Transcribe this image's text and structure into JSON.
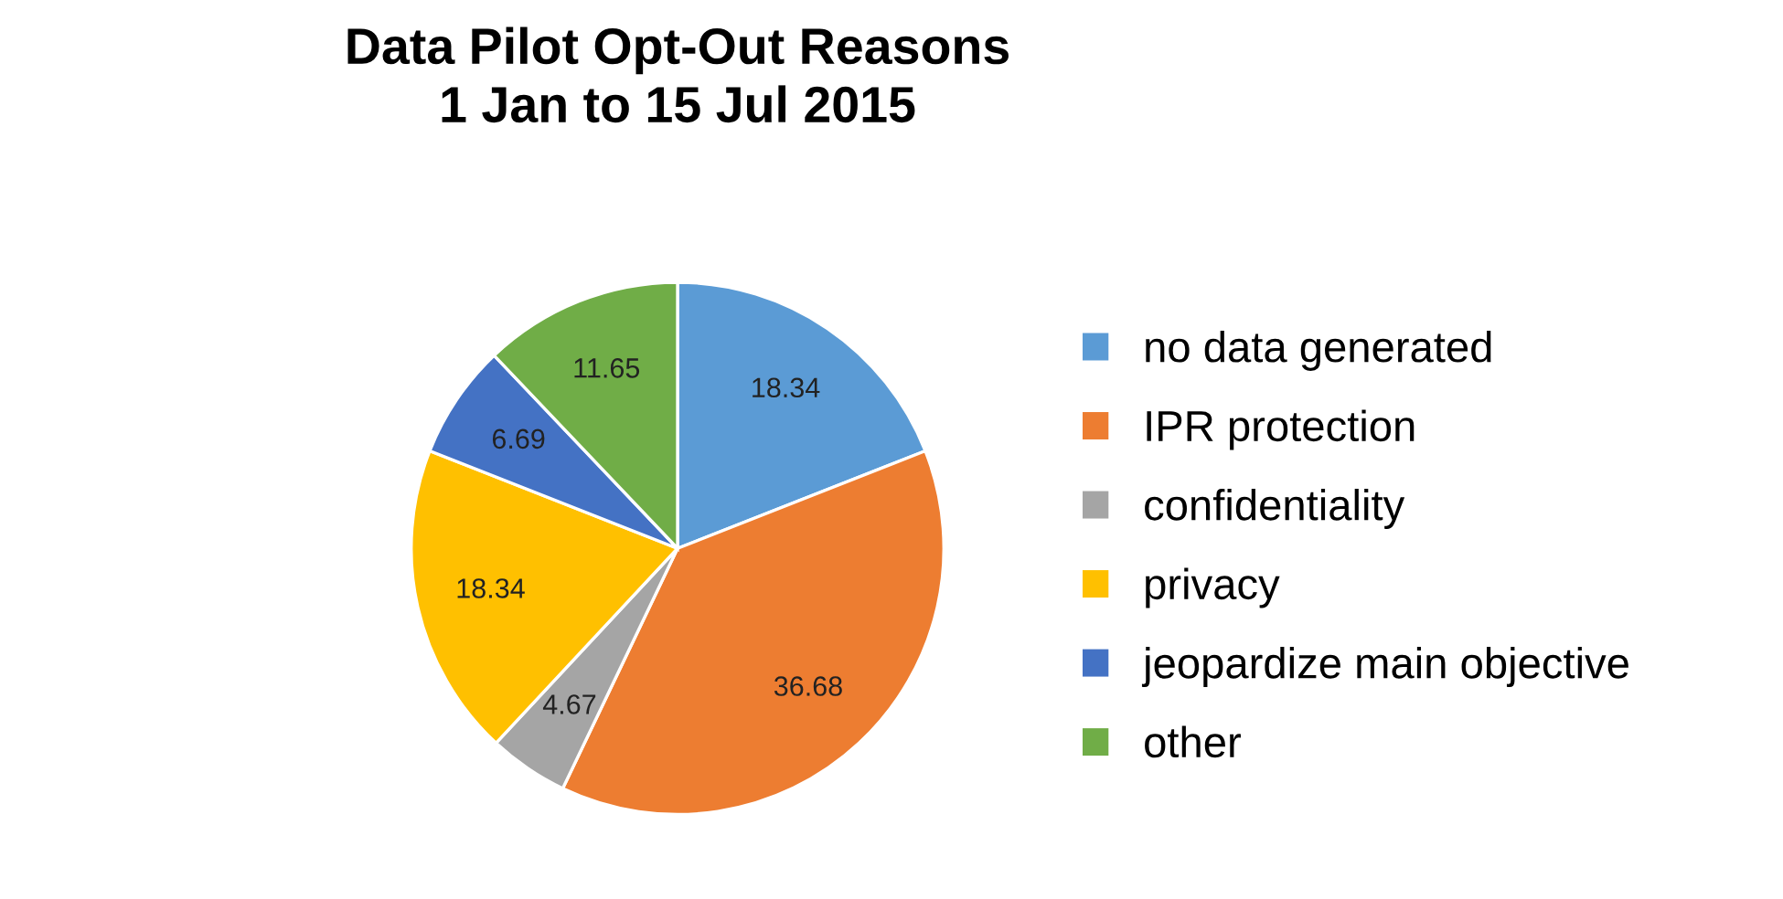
{
  "chart_data": {
    "type": "pie",
    "title": "Data Pilot Opt-Out Reasons\n1 Jan to 15 Jul 2015",
    "categories": [
      "no data generated",
      "IPR protection",
      "confidentiality",
      "privacy",
      "jeopardize main objective",
      "other"
    ],
    "values": [
      18.34,
      36.68,
      4.67,
      18.34,
      6.69,
      11.65
    ],
    "colors": [
      "#5b9bd5",
      "#ed7d31",
      "#a5a5a5",
      "#ffc000",
      "#4472c4",
      "#70ad47"
    ],
    "data_labels": true,
    "legend": "right"
  }
}
